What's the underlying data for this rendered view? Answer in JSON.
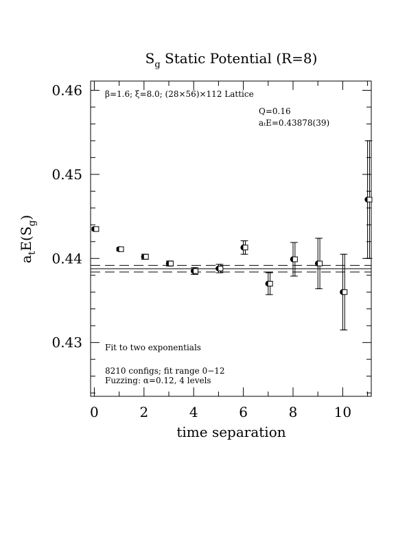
{
  "chart_data": {
    "type": "scatter",
    "title": "S_g Static Potential (R=8)",
    "title_main": "S",
    "title_sub": "g",
    "title_rest": " Static Potential (R=8)",
    "xlabel": "time separation",
    "ylabel_main": "a",
    "ylabel_sub1": "t",
    "ylabel_mid": "E(S",
    "ylabel_sub2": "g",
    "ylabel_end": ")",
    "xlim": [
      -0.15,
      11.15
    ],
    "ylim": [
      0.4236,
      0.4611
    ],
    "x_ticks": [
      0,
      2,
      4,
      6,
      8,
      10
    ],
    "x_tick_labels": [
      "0",
      "2",
      "4",
      "6",
      "8",
      "10"
    ],
    "y_ticks": [
      0.43,
      0.44,
      0.45,
      0.46
    ],
    "y_tick_labels": [
      "0.43",
      "0.44",
      "0.45",
      "0.46"
    ],
    "annotations": {
      "lattice": "β=1.6; ξ=8.0; (28×56)×112 Lattice",
      "q": "Q=0.16",
      "energy": "aₜE=0.43878(39)",
      "fit": "Fit to two exponentials",
      "configs": "8210 configs; fit range 0−12",
      "fuzzing": "Fuzzing: α=0.12, 4 levels"
    },
    "fit": {
      "center": 0.43878,
      "error": 0.00039,
      "x_range": [
        -0.15,
        11.15
      ]
    },
    "series": [
      {
        "marker": "filled-circle",
        "x": [
          0,
          1,
          2,
          3,
          4,
          5,
          6,
          7,
          8,
          9,
          10,
          11
        ],
        "y": [
          0.4435,
          0.4411,
          0.4402,
          0.4394,
          0.4385,
          0.4388,
          0.4413,
          0.437,
          0.4399,
          0.4394,
          0.436,
          0.447
        ],
        "err": [
          0.0002,
          0.0002,
          0.0003,
          0.0003,
          0.0004,
          0.0005,
          0.0008,
          0.0013,
          0.002,
          0.003,
          0.0045,
          0.007
        ]
      },
      {
        "marker": "open-square",
        "x": [
          0.08,
          1.08,
          2.08,
          3.08,
          4.08,
          5.08,
          6.08,
          7.08,
          8.08,
          9.08,
          10.08,
          11.08
        ],
        "y": [
          0.4435,
          0.4411,
          0.4402,
          0.4394,
          0.4385,
          0.4388,
          0.4413,
          0.437,
          0.4399,
          0.4394,
          0.436,
          0.447
        ],
        "err": [
          0.0002,
          0.0002,
          0.0003,
          0.0003,
          0.0004,
          0.0005,
          0.0008,
          0.0013,
          0.002,
          0.003,
          0.0045,
          0.007
        ]
      }
    ]
  }
}
